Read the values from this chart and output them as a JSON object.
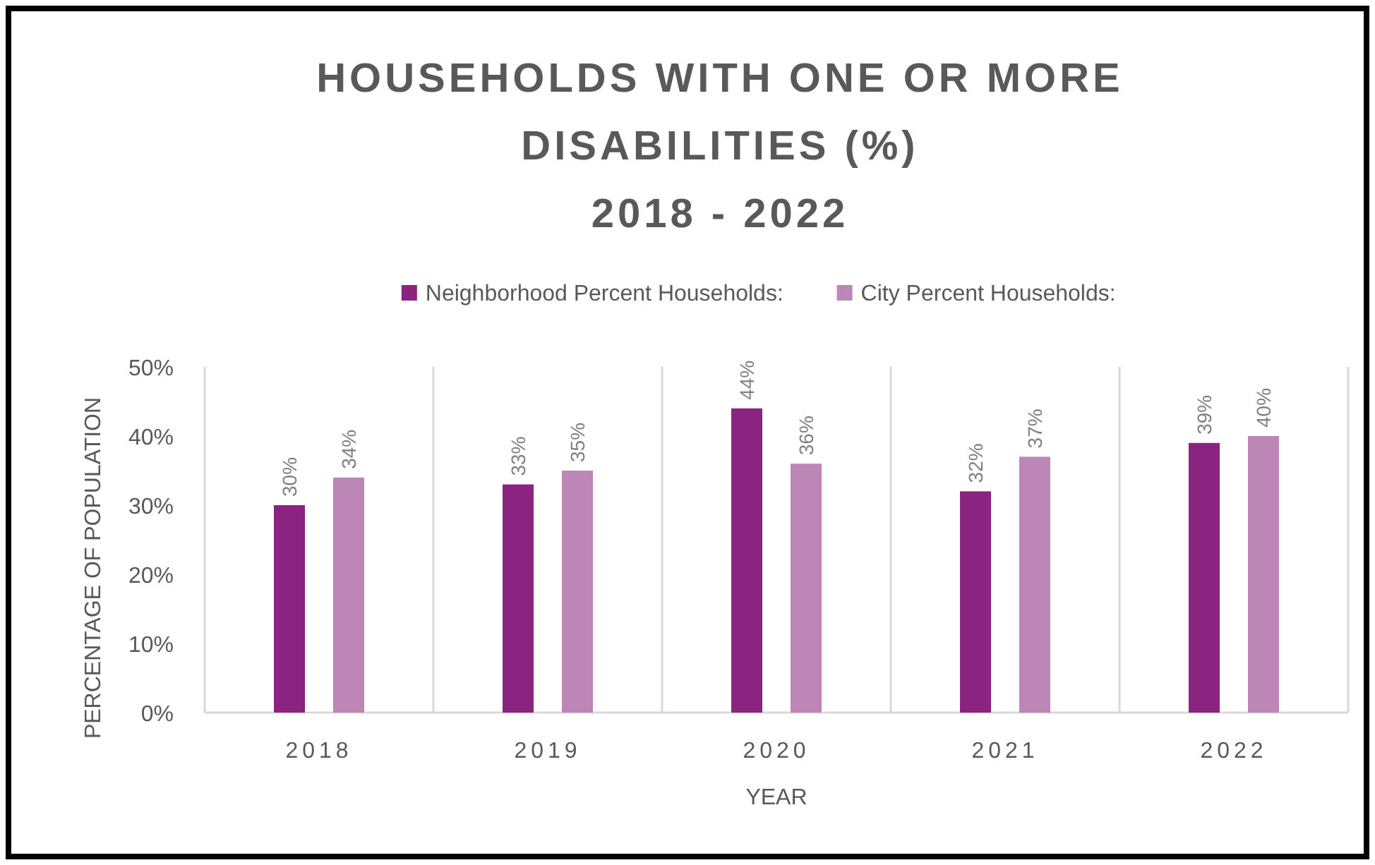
{
  "chart_data": {
    "type": "bar",
    "title": "HOUSEHOLDS WITH ONE OR MORE\nDISABILITIES (%)\n2018 - 2022",
    "xlabel": "YEAR",
    "ylabel": "PERCENTAGE OF POPULATION",
    "categories": [
      "2018",
      "2019",
      "2020",
      "2021",
      "2022"
    ],
    "series": [
      {
        "name": "Neighborhood Percent Households:",
        "color": "#8b2381",
        "values": [
          30,
          33,
          44,
          32,
          39
        ],
        "value_labels": [
          "30%",
          "33%",
          "44%",
          "32%",
          "39%"
        ]
      },
      {
        "name": "City Percent Households:",
        "color": "#bc86b6",
        "values": [
          34,
          35,
          36,
          37,
          40
        ],
        "value_labels": [
          "34%",
          "35%",
          "36%",
          "37%",
          "40%"
        ]
      }
    ],
    "ylim": [
      0,
      50
    ],
    "yticks": [
      {
        "value": 0,
        "label": "0%"
      },
      {
        "value": 10,
        "label": "10%"
      },
      {
        "value": 20,
        "label": "20%"
      },
      {
        "value": 30,
        "label": "30%"
      },
      {
        "value": 40,
        "label": "40%"
      },
      {
        "value": 50,
        "label": "50%"
      }
    ],
    "grid": "x",
    "legend": "top"
  }
}
